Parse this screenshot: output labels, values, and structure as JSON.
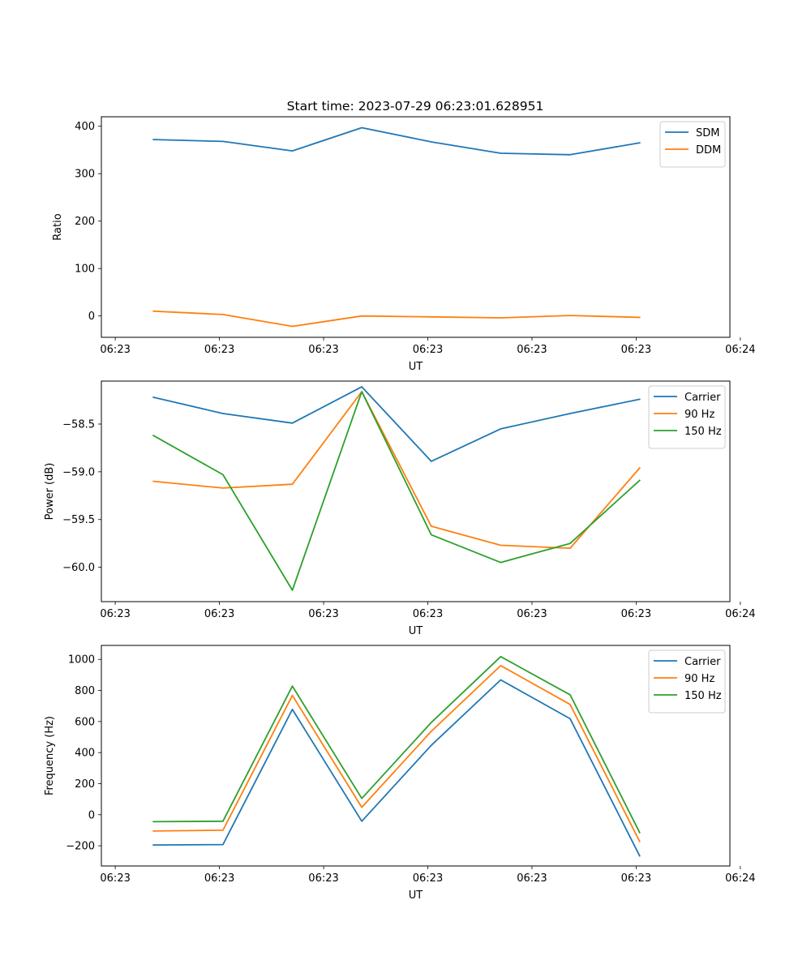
{
  "figure_title": "Start time: 2023-07-29 06:23:01.628951",
  "colors": {
    "blue": "#1f77b4",
    "orange": "#ff7f0e",
    "green": "#2ca02c"
  },
  "chart_data": [
    {
      "type": "line",
      "title": "Start time: 2023-07-29 06:23:01.628951",
      "xlabel": "UT",
      "ylabel": "Ratio",
      "xlim": [
        -0.75,
        8.3
      ],
      "x": [
        0,
        1,
        2,
        3,
        4,
        5,
        6,
        7
      ],
      "xticks": [
        -0.55,
        0.95,
        2.45,
        3.95,
        5.45,
        6.95,
        8.45
      ],
      "xtick_labels": [
        "06:23",
        "06:23",
        "06:23",
        "06:23",
        "06:23",
        "06:23",
        "06:24"
      ],
      "ylim": [
        -45,
        420
      ],
      "yticks": [
        0,
        100,
        200,
        300,
        400
      ],
      "ytick_labels": [
        "0",
        "100",
        "200",
        "300",
        "400"
      ],
      "legend_position": "top-right",
      "series": [
        {
          "name": "SDM",
          "color": "#1f77b4",
          "values": [
            372,
            368,
            348,
            397,
            367,
            343,
            340,
            365
          ]
        },
        {
          "name": "DDM",
          "color": "#ff7f0e",
          "values": [
            10,
            3,
            -22,
            0,
            -2,
            -4,
            1,
            -3
          ]
        }
      ]
    },
    {
      "type": "line",
      "title": "",
      "xlabel": "UT",
      "ylabel": "Power (dB)",
      "xlim": [
        -0.75,
        8.3
      ],
      "x": [
        0,
        1,
        2,
        3,
        4,
        5,
        6,
        7
      ],
      "xticks": [
        -0.55,
        0.95,
        2.45,
        3.95,
        5.45,
        6.95,
        8.45
      ],
      "xtick_labels": [
        "06:23",
        "06:23",
        "06:23",
        "06:23",
        "06:23",
        "06:23",
        "06:24"
      ],
      "ylim": [
        -60.36,
        -58.05
      ],
      "yticks": [
        -58.5,
        -59.0,
        -59.5,
        -60.0
      ],
      "ytick_labels": [
        "−58.5",
        "−59.0",
        "−59.5",
        "−60.0"
      ],
      "legend_position": "top-right",
      "series": [
        {
          "name": "Carrier",
          "color": "#1f77b4",
          "values": [
            -58.22,
            -58.39,
            -58.49,
            -58.11,
            -58.89,
            -58.55,
            -58.39,
            -58.24
          ]
        },
        {
          "name": "90 Hz",
          "color": "#ff7f0e",
          "values": [
            -59.1,
            -59.17,
            -59.13,
            -58.16,
            -59.57,
            -59.77,
            -59.8,
            -58.96
          ]
        },
        {
          "name": "150 Hz",
          "color": "#2ca02c",
          "values": [
            -58.62,
            -59.03,
            -60.24,
            -58.16,
            -59.66,
            -59.95,
            -59.75,
            -59.09
          ]
        }
      ]
    },
    {
      "type": "line",
      "title": "",
      "xlabel": "UT",
      "ylabel": "Frequency (Hz)",
      "xlim": [
        -0.75,
        8.3
      ],
      "x": [
        0,
        1,
        2,
        3,
        4,
        5,
        6,
        7
      ],
      "xticks": [
        -0.55,
        0.95,
        2.45,
        3.95,
        5.45,
        6.95,
        8.45
      ],
      "xtick_labels": [
        "06:23",
        "06:23",
        "06:23",
        "06:23",
        "06:23",
        "06:23",
        "06:24"
      ],
      "ylim": [
        -330,
        1090
      ],
      "yticks": [
        -200,
        0,
        200,
        400,
        600,
        800,
        1000
      ],
      "ytick_labels": [
        "−200",
        "0",
        "200",
        "400",
        "600",
        "800",
        "1000"
      ],
      "legend_position": "top-right",
      "series": [
        {
          "name": "Carrier",
          "color": "#1f77b4",
          "values": [
            -195,
            -192,
            678,
            -42,
            447,
            868,
            618,
            -265
          ]
        },
        {
          "name": "90 Hz",
          "color": "#ff7f0e",
          "values": [
            -105,
            -100,
            768,
            48,
            537,
            960,
            710,
            -172
          ]
        },
        {
          "name": "150 Hz",
          "color": "#2ca02c",
          "values": [
            -45,
            -42,
            828,
            105,
            594,
            1018,
            772,
            -115
          ]
        }
      ]
    }
  ]
}
